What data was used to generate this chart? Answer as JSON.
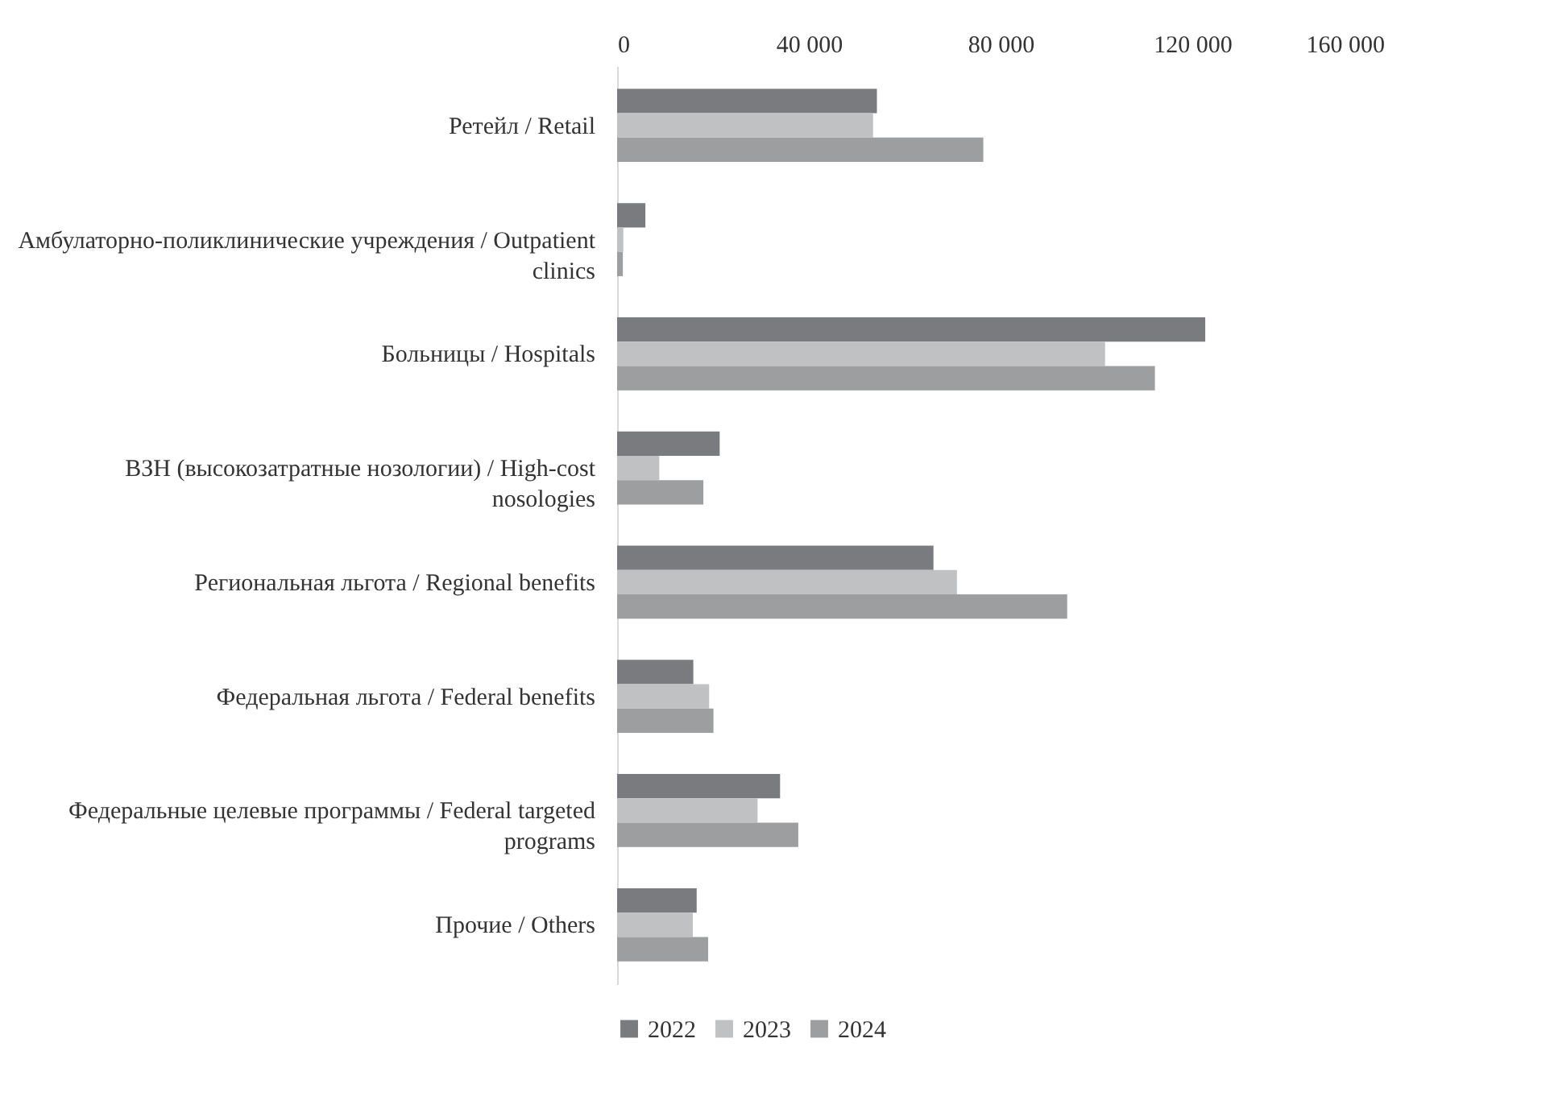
{
  "chart_data": {
    "type": "bar",
    "orientation": "horizontal",
    "categories": [
      "Ретейл / Retail",
      "Амбулаторно-поликлинические учреждения / Outpatient clinics",
      "Больницы / Hospitals",
      "ВЗН (высокозатратные нозологии) / High-cost nosologies",
      "Региональная льгота / Regional benefits",
      "Федеральная льгота / Federal benefits",
      "Федеральные целевые программы / Federal targeted programs",
      "Прочие / Others"
    ],
    "series": [
      {
        "name": "2022",
        "color": "#7a7b7f",
        "values": [
          54200,
          5900,
          122700,
          21400,
          66000,
          15900,
          34000,
          16600
        ]
      },
      {
        "name": "2023",
        "color": "#c0c1c3",
        "values": [
          53400,
          1300,
          101800,
          8800,
          70900,
          19200,
          29300,
          15800
        ]
      },
      {
        "name": "2024",
        "color": "#9d9ea0",
        "values": [
          76400,
          1200,
          112200,
          18000,
          93900,
          20100,
          37800,
          19000
        ]
      }
    ],
    "xlim": [
      0,
      160000
    ],
    "xticks": [
      {
        "value": 0,
        "label": "0"
      },
      {
        "value": 40000,
        "label": "40 000"
      },
      {
        "value": 80000,
        "label": "80 000"
      },
      {
        "value": 120000,
        "label": "120 000"
      },
      {
        "value": 160000,
        "label": "160 000"
      }
    ],
    "grid": false,
    "legend": "bottom"
  }
}
